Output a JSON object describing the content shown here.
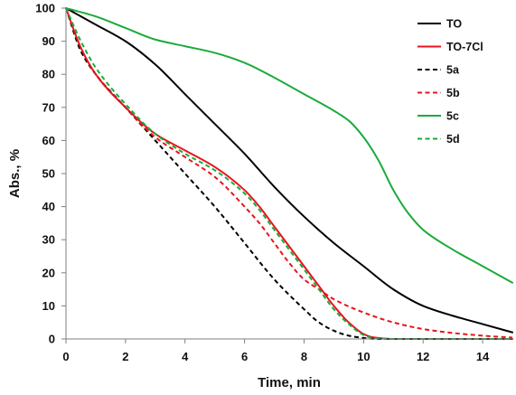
{
  "chart_data": {
    "type": "line",
    "xlabel": "Time, min",
    "ylabel": "Abs., %",
    "xlim": [
      0,
      15
    ],
    "ylim": [
      0,
      100
    ],
    "x_ticks": [
      0,
      2,
      4,
      6,
      8,
      10,
      12,
      14
    ],
    "y_ticks": [
      0,
      10,
      20,
      30,
      40,
      50,
      60,
      70,
      80,
      90,
      100
    ],
    "grid": false,
    "legend_position": "top-right",
    "series": [
      {
        "name": "TO",
        "color": "#000000",
        "dash": "solid",
        "x": [
          0,
          1,
          2,
          3,
          4,
          5,
          6,
          7,
          8,
          9,
          10,
          11,
          12,
          13,
          14,
          15
        ],
        "y": [
          100,
          95,
          90,
          83,
          74,
          65,
          56,
          46,
          37,
          29,
          22,
          15,
          10,
          7,
          4.5,
          2
        ]
      },
      {
        "name": "TO-7Cl",
        "color": "#e8141b",
        "dash": "solid",
        "x": [
          0,
          0.5,
          1,
          2,
          3,
          4,
          5,
          6,
          6.5,
          7,
          7.5,
          8,
          8.5,
          9,
          9.5,
          10,
          10.3,
          11,
          12,
          13,
          14,
          15
        ],
        "y": [
          100,
          88,
          80,
          70,
          62,
          57,
          52,
          45,
          40,
          34,
          28,
          22,
          16,
          10,
          5,
          1.5,
          0.5,
          0,
          0,
          0,
          0,
          0
        ]
      },
      {
        "name": "5a",
        "color": "#000000",
        "dash": "dashed",
        "x": [
          0,
          0.5,
          1,
          2,
          3,
          4,
          5,
          6,
          7,
          8,
          8.5,
          9,
          9.5,
          10,
          10.5,
          11,
          12,
          13,
          14,
          15
        ],
        "y": [
          100,
          87,
          80,
          70,
          60,
          50,
          40,
          29,
          18,
          9,
          5,
          2.5,
          1,
          0.3,
          0,
          0,
          0,
          0,
          0,
          0
        ]
      },
      {
        "name": "5b",
        "color": "#e8141b",
        "dash": "dashed",
        "x": [
          0,
          0.5,
          1,
          2,
          3,
          4,
          5,
          6,
          6.5,
          7,
          7.5,
          8,
          8.5,
          9,
          10,
          11,
          12,
          13,
          14,
          15
        ],
        "y": [
          100,
          88,
          80,
          70,
          61,
          55,
          49,
          40,
          35,
          29,
          23,
          18,
          15,
          12,
          8,
          5,
          3,
          1.8,
          1,
          0.4
        ]
      },
      {
        "name": "5c",
        "color": "#1aab3b",
        "dash": "solid",
        "x": [
          0,
          1,
          2,
          3,
          4,
          5,
          6,
          7,
          8,
          9,
          9.5,
          10,
          10.5,
          11,
          11.5,
          12,
          13,
          14,
          15
        ],
        "y": [
          100,
          97.5,
          94,
          90.5,
          88.5,
          86.5,
          83.5,
          79,
          74,
          69,
          66,
          61,
          54,
          45,
          38,
          33,
          27,
          22,
          17
        ]
      },
      {
        "name": "5d",
        "color": "#1aab3b",
        "dash": "dashed",
        "x": [
          0,
          0.5,
          1,
          2,
          3,
          4,
          5,
          6,
          6.5,
          7,
          7.5,
          8,
          8.5,
          9,
          9.5,
          10,
          10.3,
          11,
          12,
          13,
          14,
          15
        ],
        "y": [
          100,
          90,
          82,
          71,
          62,
          56,
          51,
          44,
          39,
          33,
          27,
          21,
          15,
          9,
          4.5,
          1.2,
          0.3,
          0,
          0,
          0,
          0,
          0
        ]
      }
    ]
  }
}
